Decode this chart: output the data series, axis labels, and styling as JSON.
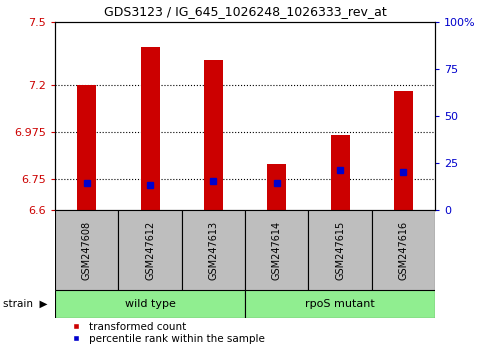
{
  "title": "GDS3123 / IG_645_1026248_1026333_rev_at",
  "samples": [
    "GSM247608",
    "GSM247612",
    "GSM247613",
    "GSM247614",
    "GSM247615",
    "GSM247616"
  ],
  "red_values": [
    7.2,
    7.38,
    7.32,
    6.82,
    6.96,
    7.17
  ],
  "blue_values": [
    6.73,
    6.72,
    6.74,
    6.73,
    6.79,
    6.78
  ],
  "ymin": 6.6,
  "ymax": 7.5,
  "yticks_left": [
    6.6,
    6.75,
    6.975,
    7.2,
    7.5
  ],
  "yticks_right": [
    0,
    25,
    50,
    75,
    100
  ],
  "hlines": [
    6.75,
    6.975,
    7.2
  ],
  "group_info": [
    {
      "label": "wild type",
      "start": 0,
      "end": 2,
      "color": "#90EE90"
    },
    {
      "label": "rpoS mutant",
      "start": 3,
      "end": 5,
      "color": "#90EE90"
    }
  ],
  "bar_color": "#CC0000",
  "marker_color": "#0000CC",
  "bg_color": "#FFFFFF",
  "tick_area_color": "#BEBEBE",
  "left_axis_color": "#CC0000",
  "right_axis_color": "#0000CC",
  "bar_width": 0.3,
  "figsize": [
    4.9,
    3.54
  ],
  "dpi": 100
}
